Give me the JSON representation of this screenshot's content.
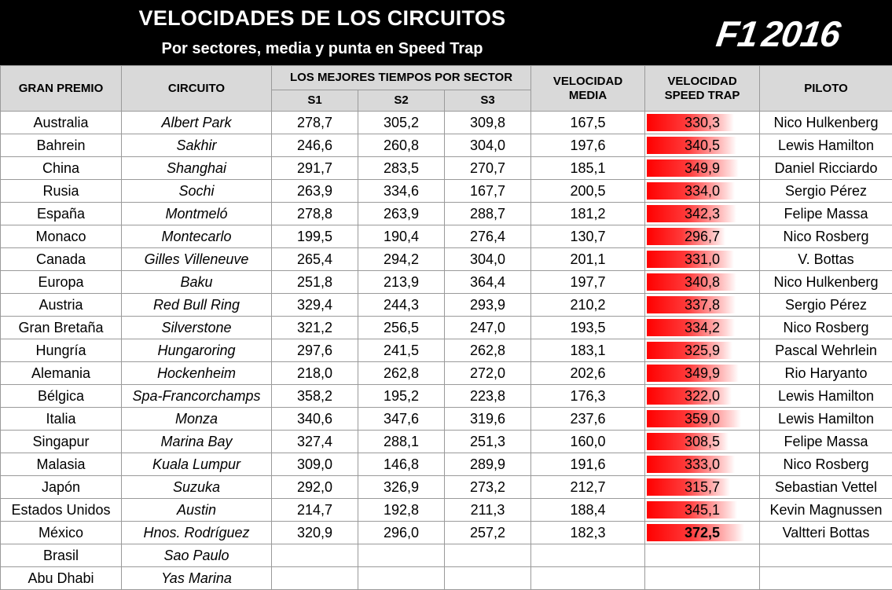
{
  "header": {
    "title": "VELOCIDADES DE LOS CIRCUITOS",
    "subtitle": "Por sectores, media y punta en Speed Trap",
    "logo_text": "F1",
    "logo_year": "2016"
  },
  "columns": {
    "gran_premio": "GRAN PREMIO",
    "circuito": "CIRCUITO",
    "sectores_group": "LOS MEJORES TIEMPOS POR SECTOR",
    "s1": "S1",
    "s2": "S2",
    "s3": "S3",
    "media_l1": "VELOCIDAD",
    "media_l2": "MEDIA",
    "trap_l1": "VELOCIDAD",
    "trap_l2": "SPEED TRAP",
    "piloto": "PILOTO"
  },
  "colors": {
    "bar_red": "#ff0000",
    "header_gray": "#d9d9d9"
  },
  "trap_scale_max": 372.5,
  "rows": [
    {
      "gp": "Australia",
      "circuito": "Albert Park",
      "s1": "278,7",
      "s2": "305,2",
      "s3": "309,8",
      "media": "167,5",
      "trap": "330,3",
      "trap_num": 330.3,
      "piloto": "Nico Hulkenberg"
    },
    {
      "gp": "Bahrein",
      "circuito": "Sakhir",
      "s1": "246,6",
      "s2": "260,8",
      "s3": "304,0",
      "media": "197,6",
      "trap": "340,5",
      "trap_num": 340.5,
      "piloto": "Lewis Hamilton"
    },
    {
      "gp": "China",
      "circuito": "Shanghai",
      "s1": "291,7",
      "s2": "283,5",
      "s3": "270,7",
      "media": "185,1",
      "trap": "349,9",
      "trap_num": 349.9,
      "piloto": "Daniel Ricciardo"
    },
    {
      "gp": "Rusia",
      "circuito": "Sochi",
      "s1": "263,9",
      "s2": "334,6",
      "s3": "167,7",
      "media": "200,5",
      "trap": "334,0",
      "trap_num": 334.0,
      "piloto": "Sergio Pérez"
    },
    {
      "gp": "España",
      "circuito": "Montmeló",
      "s1": "278,8",
      "s2": "263,9",
      "s3": "288,7",
      "media": "181,2",
      "trap": "342,3",
      "trap_num": 342.3,
      "piloto": "Felipe Massa"
    },
    {
      "gp": "Monaco",
      "circuito": "Montecarlo",
      "s1": "199,5",
      "s2": "190,4",
      "s3": "276,4",
      "media": "130,7",
      "trap": "296,7",
      "trap_num": 296.7,
      "piloto": "Nico Rosberg"
    },
    {
      "gp": "Canada",
      "circuito": "Gilles Villeneuve",
      "s1": "265,4",
      "s2": "294,2",
      "s3": "304,0",
      "media": "201,1",
      "trap": "331,0",
      "trap_num": 331.0,
      "piloto": "V. Bottas"
    },
    {
      "gp": "Europa",
      "circuito": "Baku",
      "s1": "251,8",
      "s2": "213,9",
      "s3": "364,4",
      "media": "197,7",
      "trap": "340,8",
      "trap_num": 340.8,
      "piloto": "Nico Hulkenberg"
    },
    {
      "gp": "Austria",
      "circuito": "Red Bull Ring",
      "s1": "329,4",
      "s2": "244,3",
      "s3": "293,9",
      "media": "210,2",
      "trap": "337,8",
      "trap_num": 337.8,
      "piloto": "Sergio Pérez"
    },
    {
      "gp": "Gran Bretaña",
      "circuito": "Silverstone",
      "s1": "321,2",
      "s2": "256,5",
      "s3": "247,0",
      "media": "193,5",
      "trap": "334,2",
      "trap_num": 334.2,
      "piloto": "Nico Rosberg"
    },
    {
      "gp": "Hungría",
      "circuito": "Hungaroring",
      "s1": "297,6",
      "s2": "241,5",
      "s3": "262,8",
      "media": "183,1",
      "trap": "325,9",
      "trap_num": 325.9,
      "piloto": "Pascal Wehrlein"
    },
    {
      "gp": "Alemania",
      "circuito": "Hockenheim",
      "s1": "218,0",
      "s2": "262,8",
      "s3": "272,0",
      "media": "202,6",
      "trap": "349,9",
      "trap_num": 349.9,
      "piloto": "Rio Haryanto"
    },
    {
      "gp": "Bélgica",
      "circuito": "Spa-Francorchamps",
      "s1": "358,2",
      "s2": "195,2",
      "s3": "223,8",
      "media": "176,3",
      "trap": "322,0",
      "trap_num": 322.0,
      "piloto": "Lewis Hamilton"
    },
    {
      "gp": "Italia",
      "circuito": "Monza",
      "s1": "340,6",
      "s2": "347,6",
      "s3": "319,6",
      "media": "237,6",
      "trap": "359,0",
      "trap_num": 359.0,
      "piloto": "Lewis Hamilton"
    },
    {
      "gp": "Singapur",
      "circuito": "Marina Bay",
      "s1": "327,4",
      "s2": "288,1",
      "s3": "251,3",
      "media": "160,0",
      "trap": "308,5",
      "trap_num": 308.5,
      "piloto": "Felipe Massa"
    },
    {
      "gp": "Malasia",
      "circuito": "Kuala Lumpur",
      "s1": "309,0",
      "s2": "146,8",
      "s3": "289,9",
      "media": "191,6",
      "trap": "333,0",
      "trap_num": 333.0,
      "piloto": "Nico Rosberg"
    },
    {
      "gp": "Japón",
      "circuito": "Suzuka",
      "s1": "292,0",
      "s2": "326,9",
      "s3": "273,2",
      "media": "212,7",
      "trap": "315,7",
      "trap_num": 315.7,
      "piloto": "Sebastian Vettel"
    },
    {
      "gp": "Estados Unidos",
      "circuito": "Austin",
      "s1": "214,7",
      "s2": "192,8",
      "s3": "211,3",
      "media": "188,4",
      "trap": "345,1",
      "trap_num": 345.1,
      "piloto": "Kevin Magnussen"
    },
    {
      "gp": "México",
      "circuito": "Hnos. Rodríguez",
      "s1": "320,9",
      "s2": "296,0",
      "s3": "257,2",
      "media": "182,3",
      "trap": "372,5",
      "trap_num": 372.5,
      "piloto": "Valtteri Bottas",
      "max": true
    },
    {
      "gp": "Brasil",
      "circuito": "Sao Paulo",
      "s1": "",
      "s2": "",
      "s3": "",
      "media": "",
      "trap": "",
      "trap_num": null,
      "piloto": ""
    },
    {
      "gp": "Abu Dhabi",
      "circuito": "Yas Marina",
      "s1": "",
      "s2": "",
      "s3": "",
      "media": "",
      "trap": "",
      "trap_num": null,
      "piloto": ""
    }
  ]
}
